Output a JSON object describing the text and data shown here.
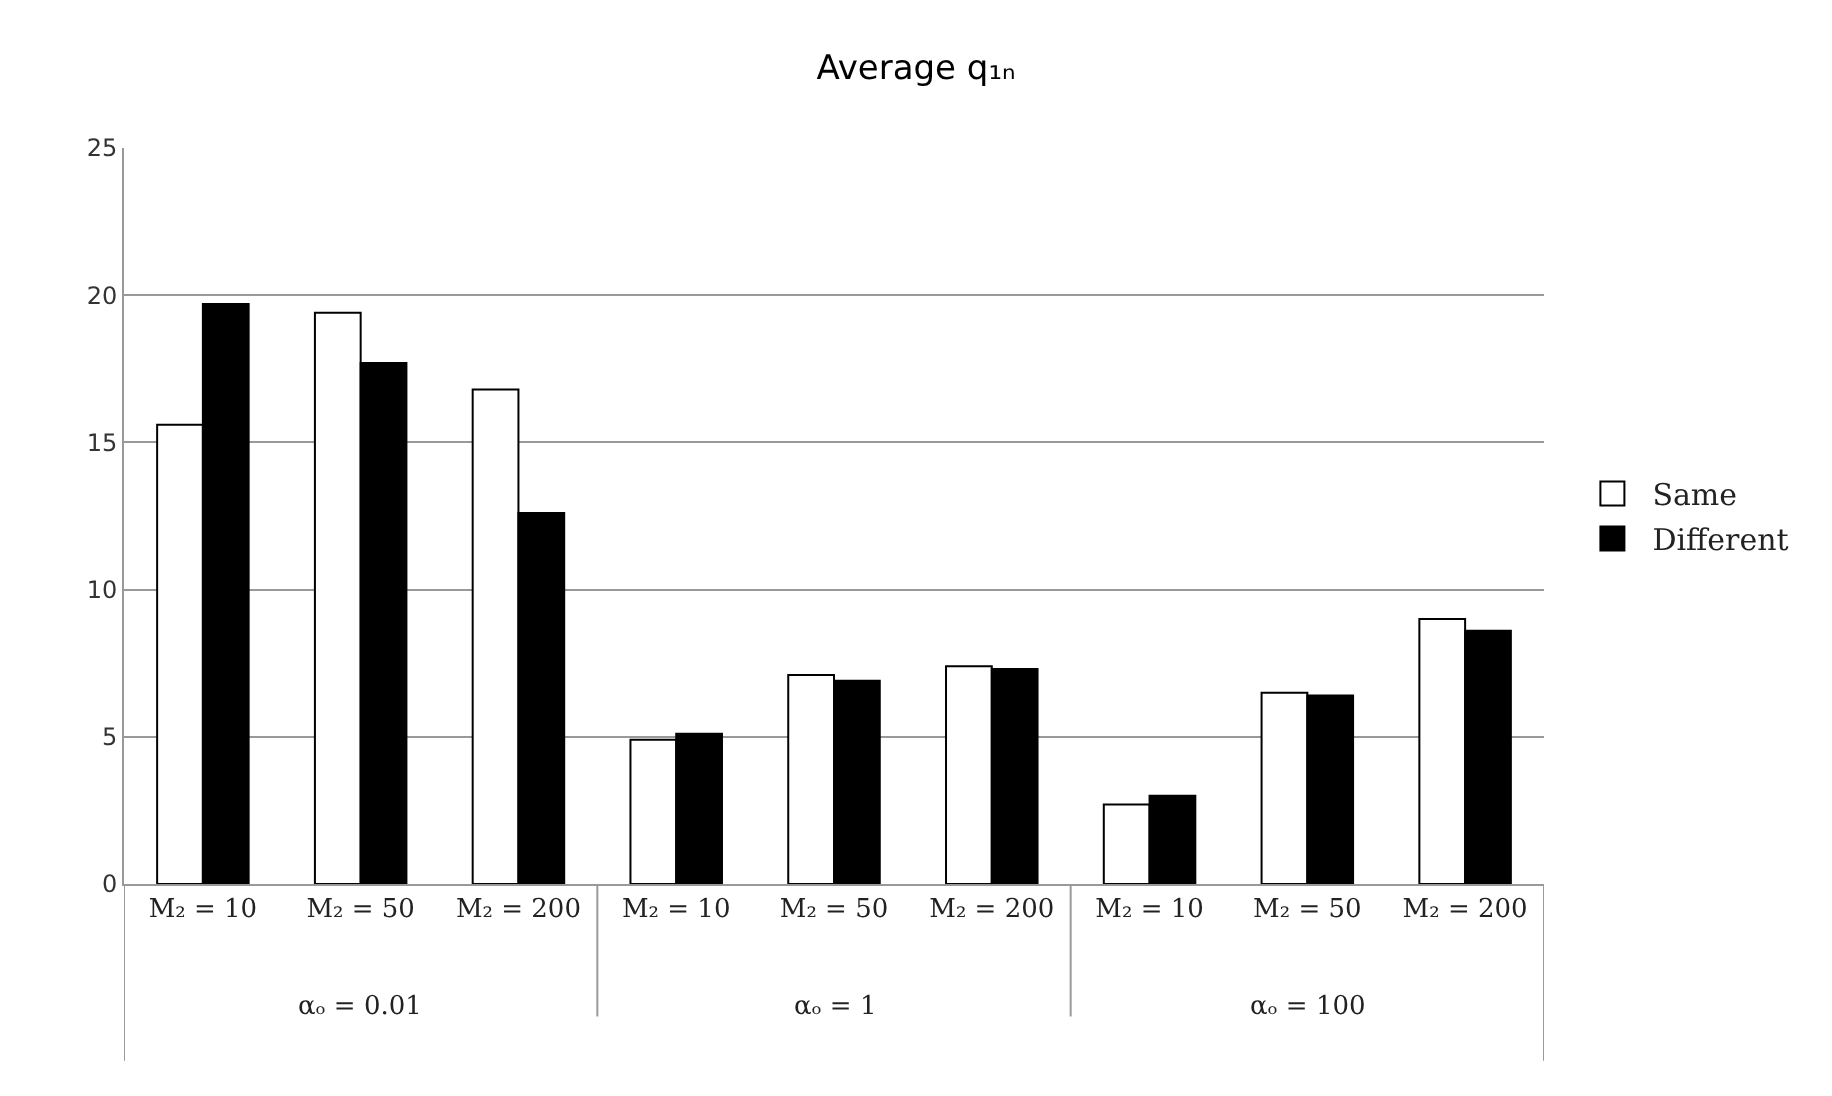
{
  "chart_data": {
    "type": "bar",
    "title": "Average q₁ₙ",
    "categories": [
      "M₂ = 10",
      "M₂ = 50",
      "M₂ = 200",
      "M₂ = 10",
      "M₂ = 50",
      "M₂ = 200",
      "M₂ = 10",
      "M₂ = 50",
      "M₂ = 200"
    ],
    "series": [
      {
        "name": "Same",
        "color": "#ffffff",
        "values": [
          15.6,
          19.4,
          16.8,
          4.9,
          7.1,
          7.4,
          2.7,
          6.5,
          9.0
        ]
      },
      {
        "name": "Different",
        "color": "#000000",
        "values": [
          19.7,
          17.7,
          12.6,
          5.1,
          6.9,
          7.3,
          3.0,
          6.4,
          8.6
        ]
      }
    ],
    "annotations": [
      "αₒ = 0.01",
      "αₒ = 1",
      "αₒ = 100"
    ],
    "ylim": [
      0,
      25
    ],
    "yticks": [
      0,
      5,
      10,
      15,
      20,
      25
    ],
    "grid": "y",
    "legend": "right"
  }
}
